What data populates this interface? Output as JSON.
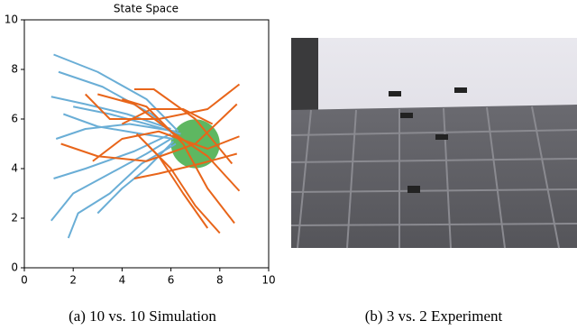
{
  "chart_data": {
    "type": "line",
    "title": "State Space",
    "xlim": [
      0,
      10
    ],
    "ylim": [
      0,
      10
    ],
    "xticks": [
      0,
      2,
      4,
      6,
      8,
      10
    ],
    "yticks": [
      0,
      2,
      4,
      6,
      8,
      10
    ],
    "target": {
      "center": [
        7,
        5
      ],
      "radius": 1,
      "color": "#4caf50"
    },
    "series": [
      {
        "color": "#6aaed6",
        "x": [
          1.2,
          3,
          5,
          6.3
        ],
        "values": [
          8.6,
          7.9,
          6.8,
          5.5
        ]
      },
      {
        "color": "#6aaed6",
        "x": [
          1.4,
          3.2,
          5.2,
          6.2
        ],
        "values": [
          7.9,
          7.3,
          6.2,
          5.3
        ]
      },
      {
        "color": "#6aaed6",
        "x": [
          1.1,
          2.5,
          4.2,
          6
        ],
        "values": [
          6.9,
          6.6,
          6.2,
          5.6
        ]
      },
      {
        "color": "#6aaed6",
        "x": [
          1.6,
          3,
          4.8,
          6.1
        ],
        "values": [
          6.2,
          5.7,
          5.4,
          5.2
        ]
      },
      {
        "color": "#6aaed6",
        "x": [
          1.2,
          2.5,
          4.5,
          6
        ],
        "values": [
          3.6,
          4,
          4.7,
          5.4
        ]
      },
      {
        "color": "#6aaed6",
        "x": [
          1.1,
          2,
          3.5,
          5,
          6
        ],
        "values": [
          1.9,
          3,
          3.8,
          4.6,
          5.2
        ]
      },
      {
        "color": "#6aaed6",
        "x": [
          1.8,
          2.2,
          3.5,
          4.8,
          6.2
        ],
        "values": [
          1.2,
          2.2,
          3,
          4.2,
          5
        ]
      },
      {
        "color": "#6aaed6",
        "x": [
          3,
          4,
          5,
          6.1
        ],
        "values": [
          2.2,
          3.2,
          4,
          5.1
        ]
      },
      {
        "color": "#6aaed6",
        "x": [
          1.3,
          2.5,
          4.3,
          6.2
        ],
        "values": [
          5.2,
          5.6,
          5.8,
          5.5
        ]
      },
      {
        "color": "#6aaed6",
        "x": [
          2,
          3.5,
          5,
          6.4
        ],
        "values": [
          6.5,
          6.2,
          5.8,
          5.4
        ]
      },
      {
        "color": "#e8651a",
        "x": [
          8.8,
          7.5,
          5.5,
          3.5,
          2.5
        ],
        "values": [
          7.4,
          6.4,
          6,
          6,
          7
        ]
      },
      {
        "color": "#e8651a",
        "x": [
          8.7,
          7,
          5,
          3,
          1.5
        ],
        "values": [
          6.6,
          5,
          4.3,
          4.5,
          5
        ]
      },
      {
        "color": "#e8651a",
        "x": [
          8.8,
          7.5,
          5.5,
          4,
          2.8
        ],
        "values": [
          5.3,
          4.8,
          5.5,
          5.2,
          4.3
        ]
      },
      {
        "color": "#e8651a",
        "x": [
          8.8,
          7.5,
          6,
          4.5,
          3
        ],
        "values": [
          3.1,
          4.5,
          5.5,
          6.6,
          7
        ]
      },
      {
        "color": "#e8651a",
        "x": [
          8.5,
          7,
          5.3,
          4.5
        ],
        "values": [
          4.2,
          6,
          7.2,
          7.2
        ]
      },
      {
        "color": "#e8651a",
        "x": [
          8.6,
          7.5,
          6.5,
          5,
          4
        ],
        "values": [
          1.8,
          3.2,
          5,
          6.5,
          6.8
        ]
      },
      {
        "color": "#e8651a",
        "x": [
          7.5,
          6.5,
          5.5,
          4.6
        ],
        "values": [
          1.6,
          3,
          4.5,
          5.4
        ]
      },
      {
        "color": "#e8651a",
        "x": [
          8,
          7,
          6,
          5
        ],
        "values": [
          1.4,
          2.5,
          4,
          5
        ]
      },
      {
        "color": "#e8651a",
        "x": [
          8.7,
          7.2,
          5.5,
          4.5
        ],
        "values": [
          4.6,
          4.2,
          3.8,
          3.6
        ]
      },
      {
        "color": "#e8651a",
        "x": [
          7.7,
          6.5,
          5.2,
          4
        ],
        "values": [
          5.8,
          6.4,
          6.4,
          5.8
        ]
      }
    ]
  },
  "captions": [
    "(a) 10 vs. 10 Simulation",
    "(b) 3 vs. 2 Experiment"
  ]
}
